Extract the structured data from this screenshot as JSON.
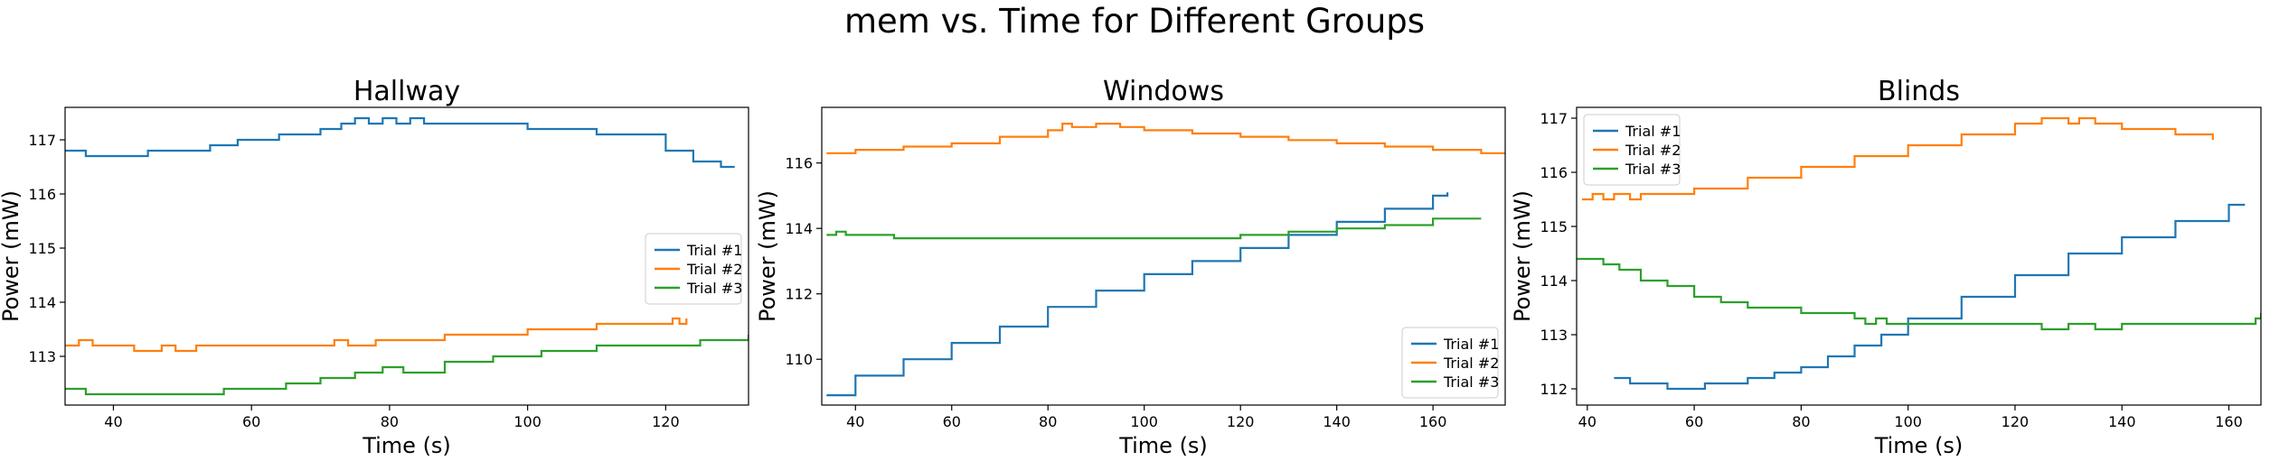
{
  "title": "mem vs. Time for Different Groups",
  "colors": [
    "#1f77b4",
    "#ff7f0e",
    "#2ca02c"
  ],
  "chart_data": [
    {
      "type": "line",
      "title": "Hallway",
      "xlabel": "Time (s)",
      "ylabel": "Power (mW)",
      "xlim": [
        33,
        132
      ],
      "ylim": [
        112.1,
        117.6
      ],
      "xticks": [
        40,
        60,
        80,
        100,
        120
      ],
      "yticks": [
        113,
        114,
        115,
        116,
        117
      ],
      "legend": "center-right",
      "series": [
        {
          "name": "Trial #1",
          "x": [
            33,
            35,
            36,
            45,
            54,
            58,
            64,
            70,
            73,
            75,
            77,
            79,
            81,
            83,
            85,
            87,
            89,
            100,
            110,
            120,
            124,
            128,
            130
          ],
          "y": [
            116.8,
            116.8,
            116.7,
            116.8,
            116.9,
            117.0,
            117.1,
            117.2,
            117.3,
            117.4,
            117.3,
            117.4,
            117.3,
            117.4,
            117.3,
            117.3,
            117.3,
            117.2,
            117.1,
            116.8,
            116.6,
            116.5,
            116.5
          ]
        },
        {
          "name": "Trial #2",
          "x": [
            33,
            35,
            37,
            41,
            43,
            47,
            49,
            52,
            55,
            58,
            70,
            72,
            74,
            78,
            88,
            100,
            110,
            120,
            121,
            122,
            123
          ],
          "y": [
            113.2,
            113.3,
            113.2,
            113.2,
            113.1,
            113.2,
            113.1,
            113.2,
            113.2,
            113.2,
            113.2,
            113.3,
            113.2,
            113.3,
            113.4,
            113.5,
            113.6,
            113.6,
            113.7,
            113.6,
            113.7
          ]
        },
        {
          "name": "Trial #3",
          "x": [
            33,
            36,
            45,
            55,
            56,
            58,
            65,
            68,
            70,
            75,
            79,
            82,
            88,
            95,
            102,
            110,
            118,
            125,
            130,
            132
          ],
          "y": [
            112.4,
            112.3,
            112.3,
            112.3,
            112.4,
            112.4,
            112.5,
            112.5,
            112.6,
            112.7,
            112.8,
            112.7,
            112.9,
            113.0,
            113.1,
            113.2,
            113.2,
            113.3,
            113.3,
            113.4
          ]
        }
      ]
    },
    {
      "type": "line",
      "title": "Windows",
      "xlabel": "Time (s)",
      "ylabel": "Power (mW)",
      "xlim": [
        33,
        175
      ],
      "ylim": [
        108.6,
        117.7
      ],
      "xticks": [
        40,
        60,
        80,
        100,
        120,
        140,
        160
      ],
      "yticks": [
        110,
        112,
        114,
        116
      ],
      "legend": "lower-right",
      "series": [
        {
          "name": "Trial #1",
          "x": [
            34,
            40,
            50,
            60,
            70,
            80,
            90,
            100,
            110,
            120,
            130,
            140,
            150,
            160,
            163
          ],
          "y": [
            108.9,
            109.5,
            110.0,
            110.5,
            111.0,
            111.6,
            112.1,
            112.6,
            113.0,
            113.4,
            113.8,
            114.2,
            114.6,
            115.0,
            115.1
          ]
        },
        {
          "name": "Trial #2",
          "x": [
            34,
            40,
            50,
            60,
            70,
            80,
            83,
            85,
            90,
            95,
            100,
            110,
            120,
            130,
            140,
            150,
            160,
            170,
            175
          ],
          "y": [
            116.3,
            116.4,
            116.5,
            116.6,
            116.8,
            117.0,
            117.2,
            117.1,
            117.2,
            117.1,
            117.0,
            116.9,
            116.8,
            116.7,
            116.6,
            116.5,
            116.4,
            116.3,
            116.3
          ]
        },
        {
          "name": "Trial #3",
          "x": [
            34,
            36,
            38,
            40,
            48,
            80,
            120,
            130,
            140,
            150,
            160,
            165,
            170
          ],
          "y": [
            113.8,
            113.9,
            113.8,
            113.8,
            113.7,
            113.7,
            113.8,
            113.9,
            114.0,
            114.1,
            114.3,
            114.3,
            114.3
          ]
        }
      ]
    },
    {
      "type": "line",
      "title": "Blinds",
      "xlabel": "Time (s)",
      "ylabel": "Power (mW)",
      "xlim": [
        38,
        166
      ],
      "ylim": [
        111.7,
        117.2
      ],
      "xticks": [
        40,
        60,
        80,
        100,
        120,
        140,
        160
      ],
      "yticks": [
        112,
        113,
        114,
        115,
        116,
        117
      ],
      "legend": "upper-left",
      "series": [
        {
          "name": "Trial #1",
          "x": [
            45,
            48,
            50,
            55,
            60,
            62,
            65,
            70,
            75,
            80,
            85,
            90,
            95,
            100,
            110,
            120,
            130,
            140,
            150,
            160,
            163
          ],
          "y": [
            112.2,
            112.1,
            112.1,
            112.0,
            112.0,
            112.1,
            112.1,
            112.2,
            112.3,
            112.4,
            112.6,
            112.8,
            113.0,
            113.3,
            113.7,
            114.1,
            114.5,
            114.8,
            115.1,
            115.4,
            115.4
          ]
        },
        {
          "name": "Trial #2",
          "x": [
            39,
            41,
            43,
            45,
            48,
            50,
            60,
            70,
            80,
            90,
            100,
            110,
            120,
            125,
            128,
            130,
            132,
            135,
            140,
            145,
            150,
            155,
            157
          ],
          "y": [
            115.5,
            115.6,
            115.5,
            115.6,
            115.5,
            115.6,
            115.7,
            115.9,
            116.1,
            116.3,
            116.5,
            116.7,
            116.9,
            117.0,
            117.0,
            116.9,
            117.0,
            116.9,
            116.8,
            116.8,
            116.7,
            116.7,
            116.6
          ]
        },
        {
          "name": "Trial #3",
          "x": [
            38,
            40,
            43,
            46,
            50,
            55,
            60,
            65,
            70,
            80,
            90,
            92,
            94,
            96,
            100,
            120,
            125,
            130,
            135,
            140,
            150,
            160,
            165,
            166
          ],
          "y": [
            114.4,
            114.4,
            114.3,
            114.2,
            114.0,
            113.9,
            113.7,
            113.6,
            113.5,
            113.4,
            113.3,
            113.2,
            113.3,
            113.2,
            113.2,
            113.2,
            113.1,
            113.2,
            113.1,
            113.2,
            113.2,
            113.2,
            113.3,
            113.4
          ]
        }
      ]
    }
  ]
}
